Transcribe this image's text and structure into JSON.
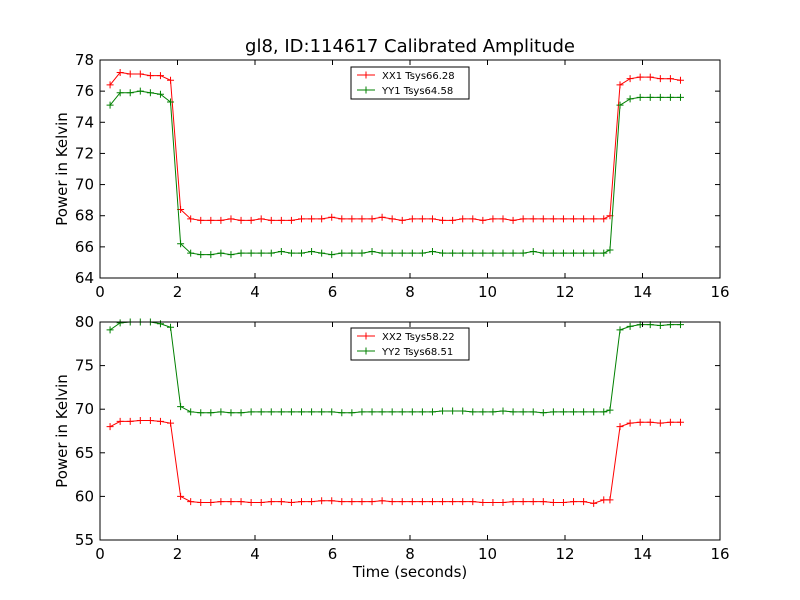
{
  "title": "gl8, ID:114617 Calibrated Amplitude",
  "chart_data": [
    {
      "type": "line",
      "title": "gl8, ID:114617 Calibrated Amplitude",
      "xlabel": "",
      "ylabel": "Power in Kelvin",
      "xlim": [
        0,
        16
      ],
      "ylim": [
        64,
        78
      ],
      "xticks": [
        "0",
        "2",
        "4",
        "6",
        "8",
        "10",
        "12",
        "14",
        "16"
      ],
      "yticks": [
        "64",
        "66",
        "68",
        "70",
        "72",
        "74",
        "76",
        "78"
      ],
      "grid": false,
      "legend_position": "top-center",
      "x": [
        0.26,
        0.52,
        0.78,
        1.04,
        1.3,
        1.56,
        1.82,
        2.08,
        2.34,
        2.6,
        2.86,
        3.12,
        3.38,
        3.64,
        3.9,
        4.16,
        4.42,
        4.68,
        4.94,
        5.2,
        5.46,
        5.72,
        5.98,
        6.24,
        6.5,
        6.76,
        7.02,
        7.28,
        7.54,
        7.8,
        8.06,
        8.32,
        8.58,
        8.84,
        9.1,
        9.36,
        9.62,
        9.88,
        10.14,
        10.4,
        10.66,
        10.92,
        11.18,
        11.44,
        11.7,
        11.96,
        12.22,
        12.48,
        12.74,
        13.0,
        13.16,
        13.42,
        13.68,
        13.94,
        14.2,
        14.46,
        14.72,
        14.98
      ],
      "series": [
        {
          "name": "XX1 Tsys66.28",
          "color": "#ff0000",
          "values": [
            76.4,
            77.2,
            77.1,
            77.1,
            77.0,
            77.0,
            76.7,
            68.4,
            67.8,
            67.7,
            67.7,
            67.7,
            67.8,
            67.7,
            67.7,
            67.8,
            67.7,
            67.7,
            67.7,
            67.8,
            67.8,
            67.8,
            67.9,
            67.8,
            67.8,
            67.8,
            67.8,
            67.9,
            67.8,
            67.7,
            67.8,
            67.8,
            67.8,
            67.7,
            67.7,
            67.8,
            67.8,
            67.7,
            67.8,
            67.8,
            67.7,
            67.8,
            67.8,
            67.8,
            67.8,
            67.8,
            67.8,
            67.8,
            67.8,
            67.8,
            68.0,
            76.4,
            76.8,
            76.9,
            76.9,
            76.8,
            76.8,
            76.7
          ]
        },
        {
          "name": "YY1 Tsys64.58",
          "color": "#008000",
          "values": [
            75.1,
            75.9,
            75.9,
            76.0,
            75.9,
            75.8,
            75.3,
            66.2,
            65.6,
            65.5,
            65.5,
            65.6,
            65.5,
            65.6,
            65.6,
            65.6,
            65.6,
            65.7,
            65.6,
            65.6,
            65.7,
            65.6,
            65.5,
            65.6,
            65.6,
            65.6,
            65.7,
            65.6,
            65.6,
            65.6,
            65.6,
            65.6,
            65.7,
            65.6,
            65.6,
            65.6,
            65.6,
            65.6,
            65.6,
            65.6,
            65.6,
            65.6,
            65.7,
            65.6,
            65.6,
            65.6,
            65.6,
            65.6,
            65.6,
            65.6,
            65.8,
            75.1,
            75.5,
            75.6,
            75.6,
            75.6,
            75.6,
            75.6
          ]
        }
      ]
    },
    {
      "type": "line",
      "title": "",
      "xlabel": "Time (seconds)",
      "ylabel": "Power in Kelvin",
      "xlim": [
        0,
        16
      ],
      "ylim": [
        55,
        80
      ],
      "xticks": [
        "0",
        "2",
        "4",
        "6",
        "8",
        "10",
        "12",
        "14",
        "16"
      ],
      "yticks": [
        "55",
        "60",
        "65",
        "70",
        "75",
        "80"
      ],
      "grid": false,
      "legend_position": "top-center",
      "x": [
        0.26,
        0.52,
        0.78,
        1.04,
        1.3,
        1.56,
        1.82,
        2.08,
        2.34,
        2.6,
        2.86,
        3.12,
        3.38,
        3.64,
        3.9,
        4.16,
        4.42,
        4.68,
        4.94,
        5.2,
        5.46,
        5.72,
        5.98,
        6.24,
        6.5,
        6.76,
        7.02,
        7.28,
        7.54,
        7.8,
        8.06,
        8.32,
        8.58,
        8.84,
        9.1,
        9.36,
        9.62,
        9.88,
        10.14,
        10.4,
        10.66,
        10.92,
        11.18,
        11.44,
        11.7,
        11.96,
        12.22,
        12.48,
        12.74,
        13.0,
        13.16,
        13.42,
        13.68,
        13.94,
        14.2,
        14.46,
        14.72,
        14.98
      ],
      "series": [
        {
          "name": "XX2 Tsys58.22",
          "color": "#ff0000",
          "values": [
            68.0,
            68.6,
            68.6,
            68.7,
            68.7,
            68.6,
            68.4,
            60.0,
            59.4,
            59.3,
            59.3,
            59.4,
            59.4,
            59.4,
            59.3,
            59.3,
            59.4,
            59.4,
            59.3,
            59.4,
            59.4,
            59.5,
            59.5,
            59.4,
            59.4,
            59.4,
            59.4,
            59.5,
            59.4,
            59.4,
            59.4,
            59.4,
            59.4,
            59.4,
            59.4,
            59.4,
            59.4,
            59.3,
            59.3,
            59.3,
            59.4,
            59.4,
            59.4,
            59.4,
            59.3,
            59.3,
            59.4,
            59.4,
            59.2,
            59.6,
            59.6,
            68.0,
            68.4,
            68.5,
            68.5,
            68.4,
            68.5,
            68.5
          ]
        },
        {
          "name": "YY2 Tsys68.51",
          "color": "#008000",
          "values": [
            79.1,
            79.9,
            80.0,
            80.0,
            80.0,
            79.8,
            79.4,
            70.3,
            69.7,
            69.6,
            69.6,
            69.7,
            69.6,
            69.6,
            69.7,
            69.7,
            69.7,
            69.7,
            69.7,
            69.7,
            69.7,
            69.7,
            69.7,
            69.6,
            69.6,
            69.7,
            69.7,
            69.7,
            69.7,
            69.7,
            69.7,
            69.7,
            69.7,
            69.8,
            69.8,
            69.8,
            69.7,
            69.7,
            69.7,
            69.8,
            69.7,
            69.7,
            69.7,
            69.6,
            69.7,
            69.7,
            69.7,
            69.7,
            69.7,
            69.7,
            69.9,
            79.1,
            79.5,
            79.7,
            79.7,
            79.6,
            79.7,
            79.7
          ]
        }
      ]
    }
  ]
}
